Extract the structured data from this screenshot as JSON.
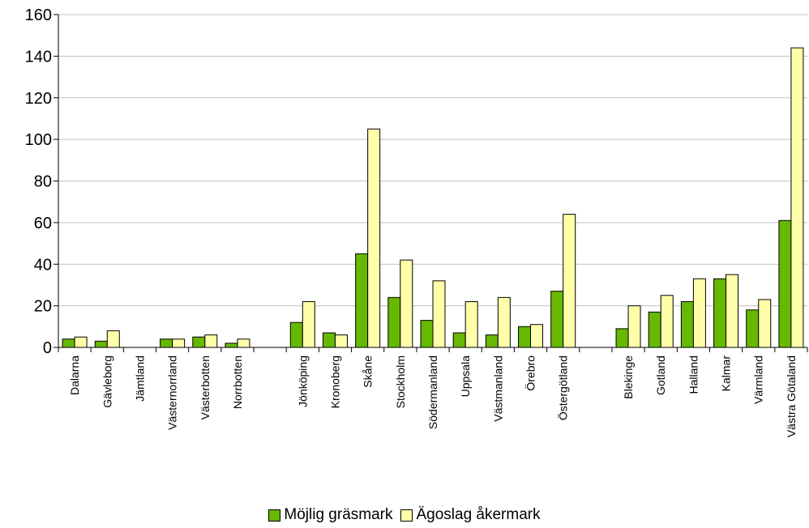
{
  "chart_data": {
    "type": "bar",
    "categories": [
      "Dalarna",
      "Gävleborg",
      "Jämtland",
      "Västernorrland",
      "Västerbotten",
      "Norrbotten",
      "",
      "Jönköping",
      "Kronoberg",
      "Skåne",
      "Stockholm",
      "Södermanland",
      "Uppsala",
      "Västmanland",
      "Örebro",
      "Östergötland",
      "",
      "Blekinge",
      "Gotland",
      "Halland",
      "Kalmar",
      "Värmland",
      "Västra Götaland"
    ],
    "series": [
      {
        "name": "Möjlig gräsmark",
        "color": "#66b800",
        "values": [
          4,
          3,
          0,
          4,
          5,
          2,
          null,
          12,
          7,
          45,
          24,
          13,
          7,
          6,
          10,
          27,
          null,
          9,
          17,
          22,
          33,
          18,
          61
        ]
      },
      {
        "name": "Ägoslag åkermark",
        "color": "#ffffaa",
        "values": [
          5,
          8,
          0,
          4,
          6,
          4,
          null,
          22,
          6,
          105,
          42,
          32,
          22,
          24,
          11,
          64,
          null,
          20,
          25,
          33,
          35,
          23,
          144
        ]
      }
    ],
    "ylim": [
      0,
      160
    ],
    "yticks": [
      0,
      20,
      40,
      60,
      80,
      100,
      120,
      140,
      160
    ],
    "grid": true,
    "legend_position": "bottom"
  }
}
